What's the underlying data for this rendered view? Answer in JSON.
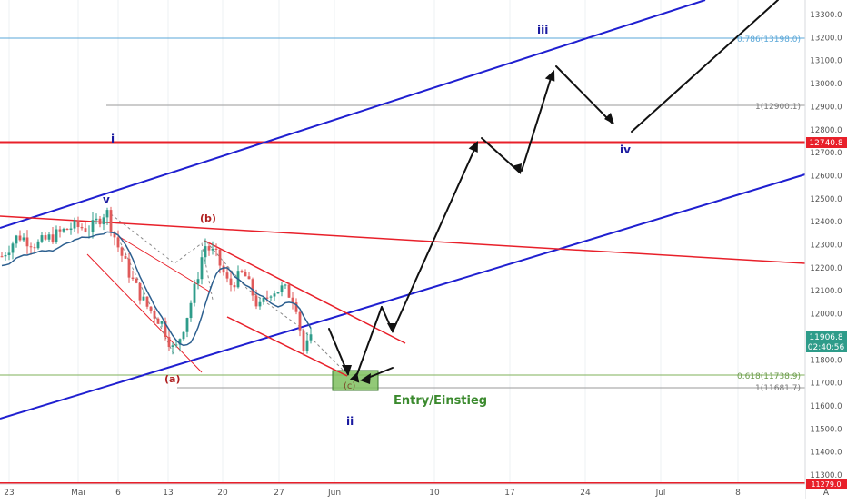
{
  "chart_data": {
    "type": "candlestick",
    "price_axis": {
      "ticks": [
        "13300.0",
        "13200.0",
        "13100.0",
        "13000.0",
        "12900.0",
        "12800.0",
        "12700.0",
        "12600.0",
        "12500.0",
        "12400.0",
        "12300.0",
        "12200.0",
        "12100.0",
        "12000.0",
        "11900.0",
        "11800.0",
        "11700.0",
        "11600.0",
        "11500.0",
        "11400.0",
        "11300.0"
      ],
      "range": [
        11270,
        13360
      ]
    },
    "time_axis": {
      "ticks": [
        "23",
        "Mai",
        "6",
        "13",
        "20",
        "27",
        "Jun",
        "10",
        "17",
        "24",
        "Jul",
        "8"
      ]
    },
    "badges": {
      "resistance": "12740.8",
      "last_price": "11906.8",
      "countdown": "02:40:56",
      "bottom_price": "11279.0",
      "axis_mode": "A"
    },
    "fib_levels": [
      {
        "label": "0.786(13198.0)",
        "value": 13198.0
      },
      {
        "label": "1(12900.1)",
        "value": 12900.1
      },
      {
        "label": "0.618(11738.9)",
        "value": 11738.9
      },
      {
        "label": "1(11681.7)",
        "value": 11681.7
      }
    ],
    "resistance_level": 12740.8,
    "wave_labels": {
      "i": "i",
      "ii": "ii",
      "iii": "iii",
      "iv": "iv",
      "v": "v",
      "a": "(a)",
      "b": "(b)",
      "c": "(c)"
    },
    "entry_label": "Entry/Einstieg",
    "colors": {
      "channel": "#1f1fd0",
      "trendline": "#e8202a",
      "resistance": "#e8202a",
      "fib_upper": "#5aa7d8",
      "fib_lower": "#7fb05a",
      "candle_up": "#2e9c8a",
      "candle_down": "#e05a5a",
      "wave_text": "#1a1aa0",
      "corrective_text": "#b02020",
      "entry_text": "#3b8a2e",
      "entry_box": "#7fbf5f",
      "moving_average": "#2c5f8f"
    }
  }
}
